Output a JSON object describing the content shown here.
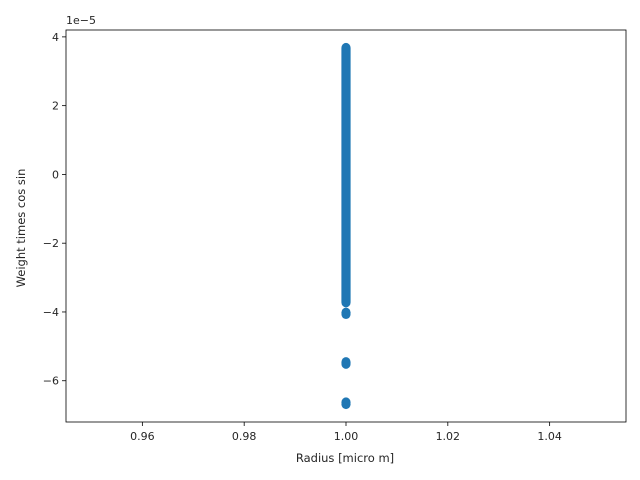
{
  "chart_data": {
    "type": "scatter",
    "xlabel": "Radius [micro m]",
    "ylabel": "Weight times  cos  sin",
    "y_offset_text": "1e−5",
    "xlim": [
      0.945,
      1.055
    ],
    "ylim": [
      -7.2,
      4.2
    ],
    "x_ticks": [
      0.96,
      0.98,
      1.0,
      1.02,
      1.04
    ],
    "x_tick_labels": [
      "0.96",
      "0.98",
      "1.00",
      "1.02",
      "1.04"
    ],
    "y_ticks": [
      -6,
      -4,
      -2,
      0,
      2,
      4
    ],
    "y_tick_labels": [
      "−6",
      "−4",
      "−2",
      "0",
      "2",
      "4"
    ],
    "grid": false,
    "marker_color": "#1f77b4",
    "series": [
      {
        "x_dense": 1.0,
        "y_dense_range": [
          -3.72,
          3.68
        ],
        "points": [
          {
            "x": 1.0,
            "y": -4.02
          },
          {
            "x": 1.0,
            "y": -4.06
          },
          {
            "x": 1.0,
            "y": -5.46
          },
          {
            "x": 1.0,
            "y": -5.51
          },
          {
            "x": 1.0,
            "y": -6.63
          },
          {
            "x": 1.0,
            "y": -6.68
          }
        ]
      }
    ]
  }
}
